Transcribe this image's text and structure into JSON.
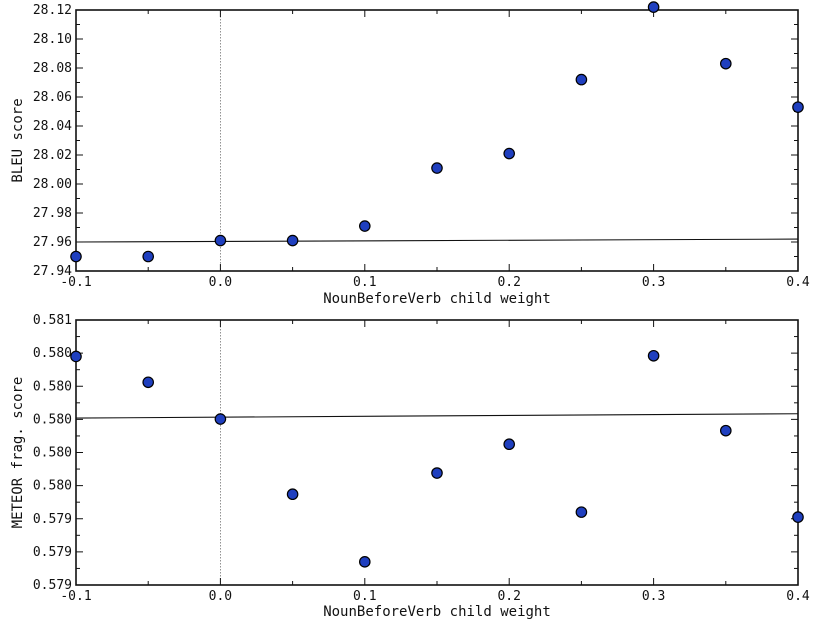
{
  "chart_data": [
    {
      "type": "scatter",
      "xlabel": "NounBeforeVerb child weight",
      "ylabel": "BLEU score",
      "xlim": [
        -0.1,
        0.4
      ],
      "ylim": [
        27.94,
        28.12
      ],
      "x_ticks": [
        "-0.1",
        "0.0",
        "0.1",
        "0.2",
        "0.3",
        "0.4"
      ],
      "x_tick_values": [
        -0.1,
        0.0,
        0.1,
        0.2,
        0.3,
        0.4
      ],
      "y_ticks": [
        "27.94",
        "27.96",
        "27.98",
        "28.00",
        "28.02",
        "28.04",
        "28.06",
        "28.08",
        "28.10",
        "28.12"
      ],
      "y_tick_values": [
        27.94,
        27.96,
        27.98,
        28.0,
        28.02,
        28.04,
        28.06,
        28.08,
        28.1,
        28.12
      ],
      "points": [
        {
          "x": -0.1,
          "y": 27.95
        },
        {
          "x": -0.05,
          "y": 27.95
        },
        {
          "x": 0.0,
          "y": 27.961
        },
        {
          "x": 0.05,
          "y": 27.961
        },
        {
          "x": 0.1,
          "y": 27.971
        },
        {
          "x": 0.15,
          "y": 28.011
        },
        {
          "x": 0.2,
          "y": 28.021
        },
        {
          "x": 0.25,
          "y": 28.072
        },
        {
          "x": 0.3,
          "y": 28.122
        },
        {
          "x": 0.35,
          "y": 28.083
        },
        {
          "x": 0.4,
          "y": 28.053
        }
      ],
      "reference_line": {
        "y_start": 27.96,
        "y_end": 27.962
      },
      "vertical_line_x": 0.0,
      "grid": false,
      "point_color": "#1f3fbf"
    },
    {
      "type": "scatter",
      "xlabel": "NounBeforeVerb child weight",
      "ylabel": "METEOR frag. score",
      "xlim": [
        -0.1,
        0.4
      ],
      "ylim": [
        0.0,
        8.0
      ],
      "x_ticks": [
        "-0.1",
        "0.0",
        "0.1",
        "0.2",
        "0.3",
        "0.4"
      ],
      "x_tick_values": [
        -0.1,
        0.0,
        0.1,
        0.2,
        0.3,
        0.4
      ],
      "y_ticks": [
        "0.579",
        "0.579",
        "0.579",
        "0.580",
        "0.580",
        "0.580",
        "0.580",
        "0.580",
        "0.581"
      ],
      "y_tick_values": [
        0,
        1,
        2,
        3,
        4,
        5,
        6,
        7,
        8
      ],
      "points": [
        {
          "x": -0.1,
          "y": 6.9
        },
        {
          "x": -0.05,
          "y": 6.12
        },
        {
          "x": 0.0,
          "y": 5.01
        },
        {
          "x": 0.05,
          "y": 2.74
        },
        {
          "x": 0.1,
          "y": 0.7
        },
        {
          "x": 0.15,
          "y": 3.38
        },
        {
          "x": 0.2,
          "y": 4.25
        },
        {
          "x": 0.25,
          "y": 2.2
        },
        {
          "x": 0.3,
          "y": 6.92
        },
        {
          "x": 0.35,
          "y": 4.66
        },
        {
          "x": 0.4,
          "y": 2.05
        }
      ],
      "reference_line": {
        "y_start": 5.04,
        "y_end": 5.17
      },
      "vertical_line_x": 0.0,
      "grid": false,
      "point_color": "#1f3fbf"
    }
  ]
}
